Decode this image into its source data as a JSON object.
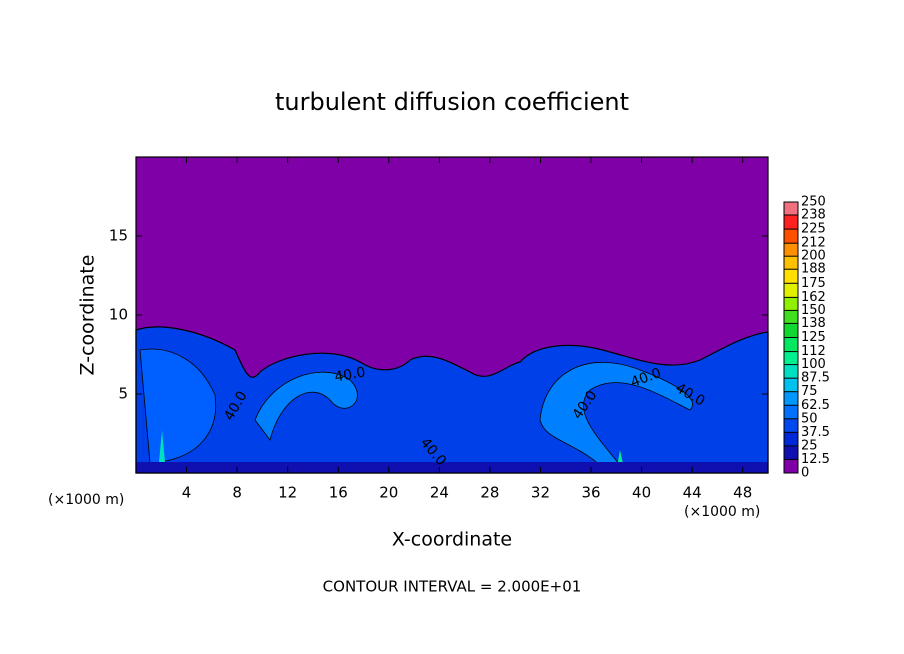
{
  "chart_data": {
    "type": "contour",
    "title": "turbulent diffusion coefficient",
    "x_label": "X-coordinate",
    "y_label": "Z-coordinate",
    "x_unit": "(×1000 m)",
    "note": "CONTOUR INTERVAL = 2.000E+01",
    "xlim": [
      0,
      50
    ],
    "xticks": [
      4,
      8,
      12,
      16,
      20,
      24,
      28,
      32,
      36,
      40,
      44,
      48
    ],
    "ylim": [
      0,
      20
    ],
    "yticks": [
      5,
      10,
      15
    ],
    "colorbar": {
      "ticks": [
        0,
        12.5,
        25,
        37.5,
        50,
        62.5,
        75,
        87.5,
        100,
        112,
        125,
        138,
        150,
        162,
        175,
        188,
        200,
        212,
        225,
        238,
        250
      ],
      "colors": [
        "#8000a8",
        "#1010b0",
        "#0028d8",
        "#0048f0",
        "#0070ff",
        "#0098ff",
        "#00c0f0",
        "#00e0c0",
        "#00f090",
        "#00e860",
        "#10d830",
        "#40e020",
        "#90f000",
        "#e0f000",
        "#ffe000",
        "#ffc000",
        "#ff9000",
        "#ff5000",
        "#ff2020",
        "#f07080"
      ]
    },
    "contour_labels": [
      {
        "value": 40,
        "label": "40.0"
      },
      {
        "value": 40,
        "label": "40.0"
      },
      {
        "value": 40,
        "label": "40.0"
      },
      {
        "value": 40,
        "label": "40.0"
      },
      {
        "value": 40,
        "label": "40.0"
      },
      {
        "value": 40,
        "label": "40.0"
      }
    ]
  }
}
